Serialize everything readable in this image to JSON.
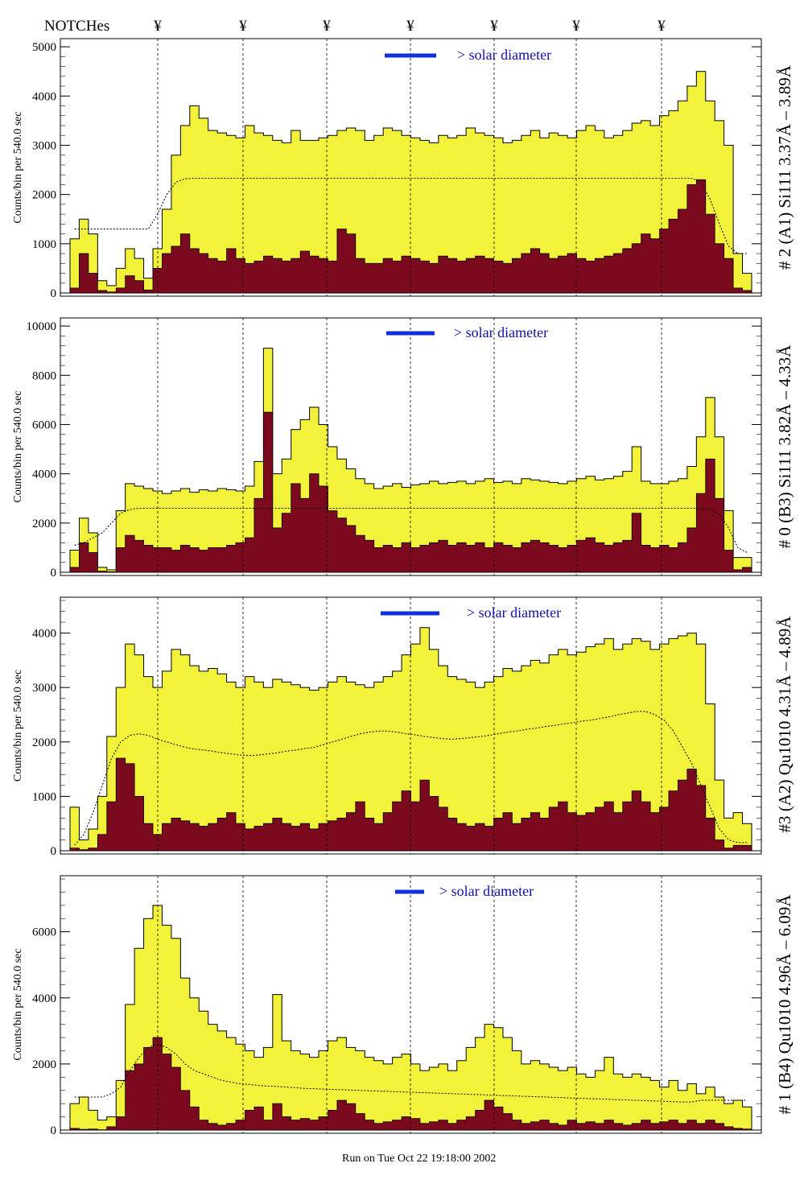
{
  "page": {
    "notch_label": "NOTCHes",
    "notch_marker": "¥",
    "notch_count": 7,
    "footer_text": "Run on Tue Oct 22 19:18:00 2002",
    "colors": {
      "fill_total": "#f2f23a",
      "fill_component": "#7b0a1e",
      "outline": "#000000",
      "annotation_blue": "#1010b0",
      "legend_bar": "#1030e0"
    }
  },
  "chart_data": [
    {
      "type": "area",
      "panel_label": "# 2 (A1) Si111  3.37Å – 3.89Å",
      "ylabel": "Counts/bin per    540.0 sec",
      "legend_text": "> solar diameter",
      "ylim": [
        0,
        5100
      ],
      "yticks": [
        0,
        1000,
        2000,
        3000,
        4000,
        5000
      ],
      "series": [
        {
          "name": "",
          "role": "total",
          "values": [
            1100,
            1500,
            1200,
            250,
            150,
            500,
            900,
            700,
            300,
            900,
            1700,
            2800,
            3400,
            3800,
            3550,
            3300,
            3250,
            3200,
            3150,
            3400,
            3250,
            3200,
            3100,
            3050,
            3300,
            3100,
            3100,
            3150,
            3200,
            3300,
            3350,
            3300,
            3100,
            3200,
            3350,
            3300,
            3200,
            3150,
            3100,
            3050,
            3200,
            3150,
            3200,
            3350,
            3250,
            3200,
            3150,
            3050,
            3100,
            3200,
            3300,
            3150,
            3250,
            3200,
            3150,
            3300,
            3400,
            3300,
            3150,
            3200,
            3300,
            3450,
            3500,
            3400,
            3600,
            3700,
            3900,
            4200,
            4500,
            3900,
            3500,
            3000,
            800,
            400
          ]
        },
        {
          "name": "",
          "role": "component",
          "values": [
            100,
            800,
            400,
            50,
            20,
            100,
            350,
            250,
            60,
            500,
            800,
            950,
            1200,
            900,
            800,
            700,
            650,
            900,
            700,
            600,
            650,
            750,
            700,
            650,
            700,
            850,
            750,
            700,
            650,
            1300,
            1200,
            700,
            600,
            600,
            700,
            650,
            750,
            700,
            650,
            600,
            750,
            700,
            650,
            700,
            750,
            700,
            650,
            600,
            700,
            800,
            900,
            800,
            700,
            750,
            800,
            700,
            650,
            700,
            750,
            800,
            900,
            1000,
            1200,
            1100,
            1300,
            1500,
            1700,
            2200,
            2300,
            1600,
            1000,
            700,
            100,
            50
          ]
        },
        {
          "name": "",
          "role": "model",
          "values": [
            1300,
            1300,
            1300,
            1300,
            1300,
            1300,
            1300,
            1300,
            1300,
            1600,
            2000,
            2250,
            2320,
            2330,
            2330,
            2330,
            2330,
            2330,
            2330,
            2330,
            2330,
            2330,
            2330,
            2330,
            2330,
            2330,
            2330,
            2330,
            2330,
            2330,
            2330,
            2330,
            2330,
            2330,
            2330,
            2330,
            2330,
            2330,
            2330,
            2330,
            2330,
            2330,
            2330,
            2330,
            2330,
            2330,
            2330,
            2330,
            2330,
            2330,
            2330,
            2330,
            2330,
            2330,
            2330,
            2330,
            2330,
            2330,
            2330,
            2330,
            2330,
            2330,
            2330,
            2330,
            2330,
            2330,
            2330,
            2330,
            2250,
            1900,
            1400,
            950,
            800,
            800
          ]
        }
      ]
    },
    {
      "type": "area",
      "panel_label": "# 0 (B3) Si111  3.82Å – 4.33Å",
      "ylabel": "Counts/bin per    540.0 sec",
      "legend_text": "> solar diameter",
      "ylim": [
        0,
        10200
      ],
      "yticks": [
        0,
        2000,
        4000,
        6000,
        8000,
        10000
      ],
      "series": [
        {
          "name": "",
          "role": "total",
          "values": [
            900,
            2200,
            1600,
            200,
            100,
            2500,
            3600,
            3500,
            3400,
            3300,
            3200,
            3300,
            3400,
            3250,
            3350,
            3300,
            3400,
            3350,
            3300,
            3500,
            4500,
            9100,
            4000,
            4600,
            5800,
            6200,
            6700,
            6000,
            5100,
            4600,
            4200,
            3800,
            3600,
            3400,
            3500,
            3600,
            3450,
            3550,
            3600,
            3700,
            3600,
            3650,
            3700,
            3600,
            3700,
            3800,
            3650,
            3700,
            3600,
            3800,
            3750,
            3700,
            3650,
            3600,
            3700,
            3800,
            3900,
            3750,
            3800,
            3900,
            4100,
            5100,
            3700,
            3600,
            3600,
            3700,
            3800,
            4300,
            5500,
            7100,
            5500,
            2500,
            600,
            600
          ]
        },
        {
          "name": "",
          "role": "component",
          "values": [
            200,
            1200,
            800,
            50,
            20,
            1000,
            1500,
            1300,
            1100,
            1000,
            1000,
            900,
            1100,
            1000,
            900,
            1000,
            1000,
            1100,
            1200,
            1400,
            3000,
            6500,
            1800,
            2400,
            3600,
            3000,
            4000,
            3500,
            2500,
            2200,
            1900,
            1500,
            1300,
            1000,
            1100,
            1000,
            1200,
            1000,
            1100,
            1200,
            1300,
            1100,
            1200,
            1100,
            1200,
            1000,
            1200,
            1100,
            1000,
            1200,
            1300,
            1200,
            1100,
            1000,
            1100,
            1300,
            1400,
            1200,
            1100,
            1200,
            1300,
            2400,
            1100,
            1000,
            1100,
            1000,
            1200,
            1800,
            3200,
            4600,
            3000,
            900,
            100,
            200
          ]
        },
        {
          "name": "",
          "role": "model",
          "values": [
            1100,
            1200,
            1400,
            1600,
            2000,
            2400,
            2550,
            2600,
            2600,
            2600,
            2600,
            2600,
            2600,
            2600,
            2600,
            2600,
            2600,
            2600,
            2600,
            2600,
            2600,
            2600,
            2600,
            2600,
            2600,
            2600,
            2600,
            2600,
            2600,
            2600,
            2600,
            2600,
            2600,
            2600,
            2600,
            2600,
            2600,
            2600,
            2600,
            2600,
            2600,
            2600,
            2600,
            2600,
            2600,
            2600,
            2600,
            2600,
            2600,
            2600,
            2600,
            2600,
            2600,
            2600,
            2600,
            2600,
            2600,
            2600,
            2600,
            2600,
            2600,
            2600,
            2600,
            2600,
            2600,
            2600,
            2600,
            2600,
            2600,
            2550,
            2350,
            1800,
            1000,
            800
          ]
        }
      ]
    },
    {
      "type": "area",
      "panel_label": "#3 (A2) Qu1010  4.31Å – 4.89Å",
      "ylabel": "Counts/bin per    540.0 sec",
      "legend_text": "> solar diameter",
      "ylim": [
        0,
        4600
      ],
      "yticks": [
        0,
        1000,
        2000,
        3000,
        4000
      ],
      "series": [
        {
          "name": "",
          "role": "total",
          "values": [
            800,
            200,
            400,
            1000,
            2100,
            3000,
            3800,
            3600,
            3200,
            3000,
            3300,
            3700,
            3600,
            3400,
            3300,
            3350,
            3250,
            3100,
            3000,
            3200,
            3100,
            3000,
            3150,
            3100,
            3050,
            3000,
            2950,
            3000,
            3100,
            3200,
            3100,
            3050,
            3000,
            3100,
            3200,
            3300,
            3600,
            3800,
            4100,
            3700,
            3400,
            3200,
            3150,
            3100,
            3000,
            3100,
            3200,
            3350,
            3300,
            3400,
            3500,
            3450,
            3600,
            3700,
            3600,
            3650,
            3750,
            3800,
            3900,
            3700,
            3800,
            3900,
            3850,
            3700,
            3800,
            3900,
            3950,
            4000,
            3800,
            2700,
            1300,
            600,
            700,
            500
          ]
        },
        {
          "name": "",
          "role": "component",
          "values": [
            50,
            20,
            50,
            300,
            900,
            1700,
            1600,
            1000,
            500,
            300,
            500,
            600,
            550,
            500,
            450,
            500,
            600,
            700,
            500,
            400,
            450,
            500,
            600,
            500,
            450,
            500,
            400,
            500,
            550,
            600,
            700,
            900,
            600,
            500,
            700,
            900,
            1100,
            900,
            1300,
            1000,
            800,
            600,
            500,
            450,
            500,
            450,
            600,
            700,
            500,
            600,
            700,
            600,
            800,
            900,
            700,
            650,
            700,
            800,
            900,
            700,
            900,
            1100,
            900,
            700,
            800,
            1100,
            1300,
            1500,
            1200,
            600,
            200,
            50,
            100,
            100
          ]
        },
        {
          "name": "",
          "role": "model",
          "values": [
            100,
            300,
            700,
            1200,
            1700,
            2000,
            2120,
            2150,
            2120,
            2050,
            2000,
            1950,
            1900,
            1870,
            1850,
            1830,
            1800,
            1780,
            1760,
            1750,
            1760,
            1780,
            1800,
            1830,
            1850,
            1880,
            1900,
            1950,
            2000,
            2050,
            2100,
            2150,
            2180,
            2200,
            2200,
            2180,
            2150,
            2130,
            2100,
            2080,
            2060,
            2050,
            2060,
            2080,
            2100,
            2120,
            2150,
            2180,
            2200,
            2230,
            2250,
            2280,
            2300,
            2330,
            2350,
            2380,
            2400,
            2430,
            2460,
            2500,
            2530,
            2560,
            2560,
            2500,
            2400,
            2200,
            1900,
            1600,
            1200,
            800,
            400,
            200,
            150,
            150
          ]
        }
      ]
    },
    {
      "type": "area",
      "panel_label": "# 1 (B4) Qu1010 4.96Å – 6.09Å",
      "ylabel": "Counts/bin per    540.0 sec",
      "legend_text": "> solar diameter",
      "ylim": [
        0,
        7600
      ],
      "yticks": [
        0,
        2000,
        4000,
        6000
      ],
      "series": [
        {
          "name": "",
          "role": "total",
          "values": [
            800,
            1000,
            600,
            300,
            400,
            1500,
            3800,
            5500,
            6400,
            6800,
            6200,
            5800,
            4600,
            4000,
            3600,
            3200,
            3000,
            2800,
            2600,
            2400,
            2200,
            2500,
            4100,
            2700,
            2400,
            2300,
            2200,
            2400,
            2700,
            2800,
            2500,
            2400,
            2200,
            2100,
            2000,
            2200,
            2300,
            2000,
            1800,
            1900,
            2000,
            1800,
            2100,
            2500,
            2800,
            3200,
            3100,
            2800,
            2400,
            2000,
            2100,
            2000,
            1900,
            1800,
            1900,
            1700,
            1600,
            1800,
            2200,
            1700,
            1600,
            1700,
            1600,
            1500,
            1300,
            1500,
            1200,
            1400,
            1100,
            1300,
            1000,
            800,
            900,
            700
          ]
        },
        {
          "name": "",
          "role": "component",
          "values": [
            50,
            20,
            30,
            10,
            100,
            400,
            1800,
            2000,
            2500,
            2800,
            2300,
            1900,
            1200,
            700,
            300,
            200,
            150,
            200,
            300,
            600,
            700,
            300,
            800,
            400,
            300,
            350,
            300,
            400,
            600,
            900,
            800,
            500,
            300,
            200,
            250,
            300,
            400,
            350,
            200,
            250,
            300,
            200,
            300,
            400,
            600,
            900,
            700,
            500,
            300,
            200,
            250,
            300,
            200,
            150,
            300,
            200,
            250,
            200,
            300,
            200,
            150,
            200,
            300,
            200,
            250,
            300,
            200,
            300,
            200,
            300,
            200,
            100,
            50,
            30
          ]
        },
        {
          "name": "",
          "role": "model",
          "values": [
            1000,
            1000,
            1000,
            1000,
            1100,
            1300,
            1800,
            2200,
            2500,
            2600,
            2500,
            2300,
            2000,
            1800,
            1700,
            1600,
            1500,
            1450,
            1400,
            1380,
            1350,
            1330,
            1320,
            1300,
            1280,
            1260,
            1250,
            1240,
            1230,
            1220,
            1210,
            1200,
            1190,
            1180,
            1170,
            1160,
            1150,
            1140,
            1130,
            1120,
            1110,
            1100,
            1090,
            1080,
            1070,
            1060,
            1050,
            1040,
            1030,
            1020,
            1010,
            1000,
            990,
            980,
            970,
            960,
            950,
            940,
            930,
            920,
            910,
            900,
            890,
            880,
            870,
            860,
            850,
            850,
            900,
            900,
            900,
            900,
            900,
            900
          ]
        }
      ]
    }
  ]
}
